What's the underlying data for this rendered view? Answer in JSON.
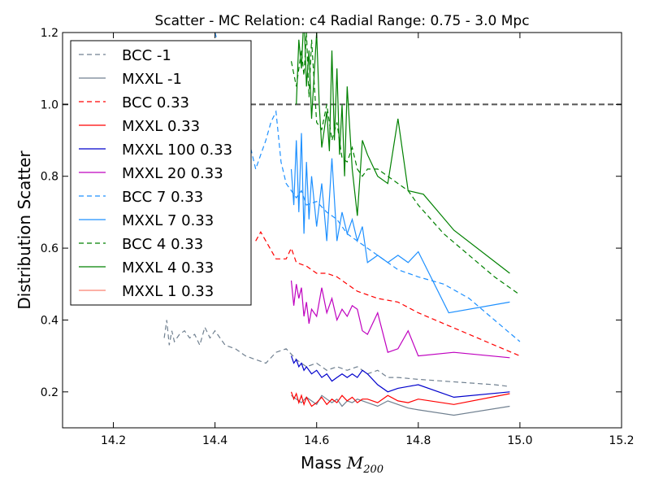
{
  "chart_data": {
    "type": "line",
    "title": "Scatter - MC Relation: c4 Radial Range: 0.75 - 3.0 Mpc",
    "xlabel": "Mass",
    "xlabel_math": "M",
    "xlabel_sub": "200",
    "ylabel": "Distribution Scatter",
    "xlim": [
      14.1,
      15.2
    ],
    "ylim": [
      0.1,
      1.2
    ],
    "xticks": [
      "14.2",
      "14.4",
      "14.6",
      "14.8",
      "15.0",
      "15.2"
    ],
    "xtick_values": [
      14.2,
      14.4,
      14.6,
      14.8,
      15.0,
      15.2
    ],
    "yticks": [
      "0.2",
      "0.4",
      "0.6",
      "0.8",
      "1.0",
      "1.2"
    ],
    "ytick_values": [
      0.2,
      0.4,
      0.6,
      0.8,
      1.0,
      1.2
    ],
    "grid": false,
    "legend_position": "top-left",
    "reference_line": {
      "y": 1.0,
      "color": "#555555",
      "style": "dashed"
    },
    "series": [
      {
        "name": "BCC -1",
        "color": "#708090",
        "style": "dashed",
        "x": [
          14.3,
          14.305,
          14.31,
          14.315,
          14.32,
          14.33,
          14.34,
          14.35,
          14.36,
          14.37,
          14.38,
          14.39,
          14.4,
          14.42,
          14.44,
          14.46,
          14.48,
          14.5,
          14.52,
          14.54,
          14.56,
          14.58,
          14.6,
          14.62,
          14.64,
          14.66,
          14.68,
          14.7,
          14.72,
          14.74,
          14.76,
          14.8,
          14.85,
          14.9,
          14.95,
          14.98
        ],
        "y": [
          0.35,
          0.4,
          0.33,
          0.37,
          0.34,
          0.36,
          0.37,
          0.35,
          0.36,
          0.33,
          0.38,
          0.35,
          0.37,
          0.33,
          0.32,
          0.3,
          0.29,
          0.28,
          0.31,
          0.32,
          0.29,
          0.27,
          0.28,
          0.26,
          0.27,
          0.26,
          0.27,
          0.25,
          0.26,
          0.24,
          0.24,
          0.235,
          0.23,
          0.225,
          0.22,
          0.215
        ]
      },
      {
        "name": "MXXL -1",
        "color": "#708090",
        "style": "solid",
        "x": [
          14.55,
          14.56,
          14.57,
          14.58,
          14.59,
          14.6,
          14.61,
          14.62,
          14.63,
          14.64,
          14.65,
          14.66,
          14.67,
          14.68,
          14.7,
          14.72,
          14.74,
          14.76,
          14.78,
          14.8,
          14.87,
          14.98
        ],
        "y": [
          0.19,
          0.18,
          0.17,
          0.185,
          0.175,
          0.165,
          0.19,
          0.18,
          0.17,
          0.18,
          0.16,
          0.175,
          0.17,
          0.18,
          0.17,
          0.16,
          0.175,
          0.165,
          0.155,
          0.15,
          0.135,
          0.16
        ]
      },
      {
        "name": "BCC 0.33",
        "color": "#ff0000",
        "style": "dashed",
        "x": [
          14.48,
          14.49,
          14.5,
          14.52,
          14.54,
          14.55,
          14.56,
          14.58,
          14.6,
          14.62,
          14.64,
          14.66,
          14.68,
          14.7,
          14.72,
          14.76,
          14.8,
          14.85,
          14.9,
          14.95,
          15.0
        ],
        "y": [
          0.62,
          0.645,
          0.62,
          0.57,
          0.57,
          0.6,
          0.56,
          0.55,
          0.53,
          0.53,
          0.52,
          0.5,
          0.48,
          0.47,
          0.46,
          0.45,
          0.42,
          0.39,
          0.36,
          0.33,
          0.3
        ]
      },
      {
        "name": "MXXL 0.33",
        "color": "#ff0000",
        "style": "solid",
        "x": [
          14.55,
          14.555,
          14.56,
          14.565,
          14.57,
          14.575,
          14.58,
          14.59,
          14.6,
          14.61,
          14.62,
          14.63,
          14.64,
          14.65,
          14.66,
          14.67,
          14.68,
          14.69,
          14.7,
          14.72,
          14.74,
          14.76,
          14.78,
          14.8,
          14.87,
          14.98
        ],
        "y": [
          0.2,
          0.18,
          0.195,
          0.17,
          0.19,
          0.165,
          0.185,
          0.16,
          0.17,
          0.185,
          0.165,
          0.18,
          0.17,
          0.19,
          0.175,
          0.185,
          0.17,
          0.18,
          0.18,
          0.17,
          0.19,
          0.175,
          0.17,
          0.18,
          0.165,
          0.195
        ]
      },
      {
        "name": "MXXL 100 0.33",
        "color": "#0000cc",
        "style": "solid",
        "x": [
          14.55,
          14.555,
          14.56,
          14.565,
          14.57,
          14.575,
          14.58,
          14.59,
          14.6,
          14.61,
          14.62,
          14.63,
          14.64,
          14.65,
          14.66,
          14.67,
          14.68,
          14.69,
          14.7,
          14.72,
          14.74,
          14.76,
          14.78,
          14.8,
          14.87,
          14.98
        ],
        "y": [
          0.3,
          0.28,
          0.29,
          0.27,
          0.28,
          0.26,
          0.27,
          0.25,
          0.26,
          0.24,
          0.25,
          0.23,
          0.24,
          0.25,
          0.24,
          0.25,
          0.24,
          0.26,
          0.25,
          0.22,
          0.2,
          0.21,
          0.215,
          0.22,
          0.185,
          0.2
        ]
      },
      {
        "name": "MXXL 20 0.33",
        "color": "#bf00bf",
        "style": "solid",
        "x": [
          14.55,
          14.555,
          14.56,
          14.565,
          14.57,
          14.575,
          14.58,
          14.585,
          14.59,
          14.6,
          14.61,
          14.62,
          14.63,
          14.64,
          14.65,
          14.66,
          14.67,
          14.68,
          14.69,
          14.7,
          14.72,
          14.74,
          14.76,
          14.78,
          14.8,
          14.87,
          14.98
        ],
        "y": [
          0.51,
          0.44,
          0.5,
          0.46,
          0.49,
          0.41,
          0.45,
          0.39,
          0.43,
          0.41,
          0.49,
          0.42,
          0.46,
          0.4,
          0.43,
          0.41,
          0.44,
          0.43,
          0.37,
          0.36,
          0.42,
          0.31,
          0.32,
          0.37,
          0.3,
          0.31,
          0.295
        ]
      },
      {
        "name": "BCC 7 0.33",
        "color": "#1e90ff",
        "style": "dashed",
        "x": [
          14.4,
          14.42,
          14.44,
          14.46,
          14.47,
          14.48,
          14.49,
          14.5,
          14.51,
          14.52,
          14.53,
          14.54,
          14.55,
          14.56,
          14.57,
          14.58,
          14.6,
          14.62,
          14.64,
          14.66,
          14.68,
          14.7,
          14.72,
          14.74,
          14.76,
          14.78,
          14.8,
          14.85,
          14.9,
          14.95,
          15.0
        ],
        "y": [
          1.2,
          1.1,
          1.05,
          0.95,
          0.88,
          0.82,
          0.86,
          0.9,
          0.95,
          0.98,
          0.84,
          0.78,
          0.76,
          0.74,
          0.76,
          0.72,
          0.73,
          0.7,
          0.68,
          0.64,
          0.62,
          0.6,
          0.58,
          0.56,
          0.54,
          0.53,
          0.52,
          0.5,
          0.46,
          0.4,
          0.34
        ]
      },
      {
        "name": "MXXL 7 0.33",
        "color": "#1e90ff",
        "style": "solid",
        "x": [
          14.55,
          14.555,
          14.56,
          14.565,
          14.57,
          14.575,
          14.58,
          14.585,
          14.59,
          14.6,
          14.61,
          14.62,
          14.63,
          14.64,
          14.65,
          14.66,
          14.67,
          14.68,
          14.69,
          14.7,
          14.72,
          14.74,
          14.76,
          14.78,
          14.8,
          14.86,
          14.98
        ],
        "y": [
          0.82,
          0.72,
          0.9,
          0.7,
          0.92,
          0.64,
          0.84,
          0.68,
          0.8,
          0.66,
          0.78,
          0.62,
          0.85,
          0.62,
          0.7,
          0.64,
          0.68,
          0.62,
          0.66,
          0.56,
          0.58,
          0.56,
          0.58,
          0.56,
          0.59,
          0.42,
          0.45
        ]
      },
      {
        "name": "BCC 4 0.33",
        "color": "#008000",
        "style": "dashed",
        "x": [
          14.55,
          14.56,
          14.57,
          14.575,
          14.58,
          14.585,
          14.59,
          14.6,
          14.61,
          14.62,
          14.63,
          14.64,
          14.65,
          14.66,
          14.67,
          14.68,
          14.69,
          14.7,
          14.72,
          14.74,
          14.76,
          14.78,
          14.8,
          14.85,
          14.9,
          14.95,
          15.0
        ],
        "y": [
          1.12,
          1.05,
          1.15,
          1.08,
          1.2,
          1.02,
          1.18,
          0.95,
          0.93,
          1.0,
          0.9,
          0.95,
          0.85,
          0.84,
          0.88,
          0.82,
          0.8,
          0.82,
          0.82,
          0.8,
          0.78,
          0.76,
          0.72,
          0.64,
          0.58,
          0.52,
          0.47
        ]
      },
      {
        "name": "MXXL 4 0.33",
        "color": "#008000",
        "style": "solid",
        "x": [
          14.56,
          14.565,
          14.57,
          14.575,
          14.58,
          14.585,
          14.59,
          14.6,
          14.605,
          14.61,
          14.62,
          14.625,
          14.63,
          14.635,
          14.64,
          14.645,
          14.65,
          14.655,
          14.66,
          14.67,
          14.68,
          14.69,
          14.7,
          14.72,
          14.74,
          14.76,
          14.78,
          14.81,
          14.87,
          14.98
        ],
        "y": [
          1.0,
          1.18,
          1.1,
          1.25,
          1.05,
          1.15,
          0.96,
          1.2,
          1.0,
          0.88,
          0.98,
          0.87,
          1.15,
          0.9,
          1.1,
          0.86,
          1.0,
          0.8,
          1.05,
          0.82,
          0.69,
          0.9,
          0.86,
          0.8,
          0.78,
          0.96,
          0.76,
          0.75,
          0.65,
          0.53
        ]
      },
      {
        "name": "MXXL 1 0.33",
        "color": "#fa8072",
        "style": "solid",
        "x": [],
        "y": []
      }
    ]
  }
}
